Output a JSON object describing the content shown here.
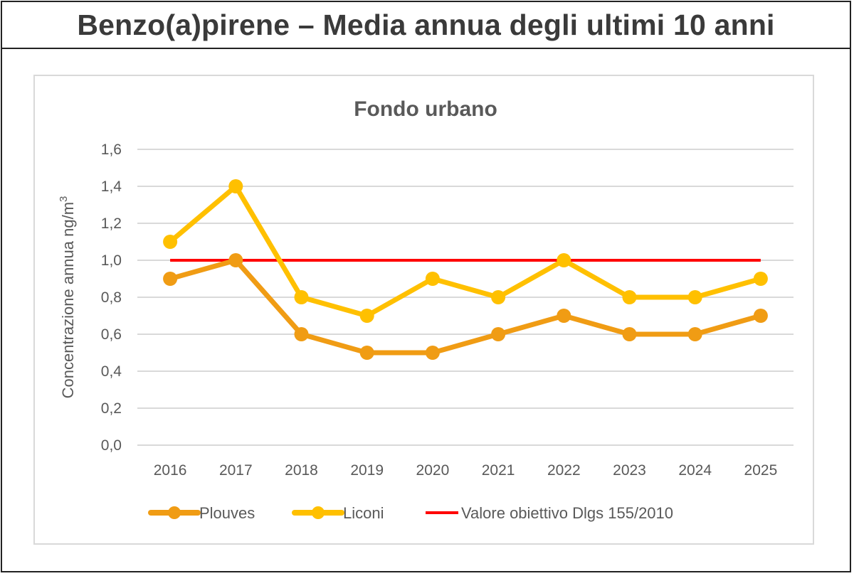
{
  "page_title": "Benzo(a)pirene – Media annua degli ultimi 10 anni",
  "chart_data": {
    "type": "line",
    "title": "Fondo urbano",
    "xlabel": "",
    "ylabel": "Concentrazione annua ng/m",
    "ylabel_superscript": "3",
    "categories": [
      "2016",
      "2017",
      "2018",
      "2019",
      "2020",
      "2021",
      "2022",
      "2023",
      "2024",
      "2025"
    ],
    "ylim": [
      0,
      1.6
    ],
    "yticks": [
      "0,0",
      "0,2",
      "0,4",
      "0,6",
      "0,8",
      "1,0",
      "1,2",
      "1,4",
      "1,6"
    ],
    "grid": true,
    "legend_position": "bottom",
    "series": [
      {
        "name": "Plouves",
        "color": "#F09C14",
        "markers": true,
        "values": [
          0.9,
          1.0,
          0.6,
          0.5,
          0.5,
          0.6,
          0.7,
          0.6,
          0.6,
          0.7
        ]
      },
      {
        "name": "Liconi",
        "color": "#FFC000",
        "markers": true,
        "values": [
          1.1,
          1.4,
          0.8,
          0.7,
          0.9,
          0.8,
          1.0,
          0.8,
          0.8,
          0.9
        ]
      },
      {
        "name": "Valore obiettivo Dlgs 155/2010",
        "color": "#FF0000",
        "markers": false,
        "values": [
          1.0,
          1.0,
          1.0,
          1.0,
          1.0,
          1.0,
          1.0,
          1.0,
          1.0,
          1.0
        ]
      }
    ]
  }
}
